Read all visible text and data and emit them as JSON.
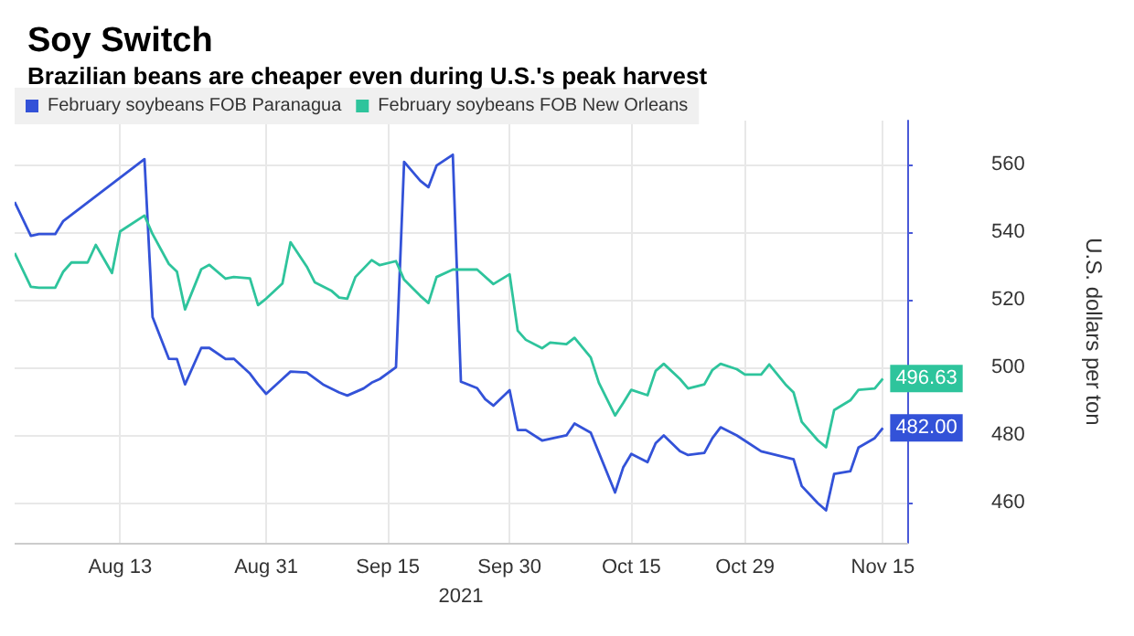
{
  "chart_data": {
    "type": "line",
    "title": "Soy Switch",
    "subtitle": "Brazilian beans are cheaper even during U.S.'s peak harvest",
    "xlabel": "2021",
    "ylabel": "U.S. dollars per ton",
    "xlim": [
      "2021-07-31",
      "2021-11-18"
    ],
    "xticks": [
      {
        "value": "2021-08-13",
        "label": "Aug 13"
      },
      {
        "value": "2021-08-31",
        "label": "Aug 31"
      },
      {
        "value": "2021-09-15",
        "label": "Sep 15"
      },
      {
        "value": "2021-09-30",
        "label": "Sep 30"
      },
      {
        "value": "2021-10-15",
        "label": "Oct 15"
      },
      {
        "value": "2021-10-29",
        "label": "Oct 29"
      },
      {
        "value": "2021-11-15",
        "label": "Nov 15"
      }
    ],
    "ylim": [
      448,
      573
    ],
    "yticks": [
      460,
      480,
      500,
      520,
      540,
      560
    ],
    "grid": true,
    "legend": "top left",
    "series": [
      {
        "name": "February soybeans FOB Paranagua",
        "color": "#3352d8",
        "x": [
          "2021-07-31",
          "2021-08-02",
          "2021-08-03",
          "2021-08-05",
          "2021-08-06",
          "2021-08-16",
          "2021-08-17",
          "2021-08-19",
          "2021-08-20",
          "2021-08-21",
          "2021-08-23",
          "2021-08-24",
          "2021-08-26",
          "2021-08-27",
          "2021-08-29",
          "2021-08-30",
          "2021-08-31",
          "2021-09-02",
          "2021-09-03",
          "2021-09-05",
          "2021-09-07",
          "2021-09-09",
          "2021-09-10",
          "2021-09-12",
          "2021-09-13",
          "2021-09-14",
          "2021-09-16",
          "2021-09-17",
          "2021-09-19",
          "2021-09-20",
          "2021-09-21",
          "2021-09-23",
          "2021-09-24",
          "2021-09-26",
          "2021-09-27",
          "2021-09-28",
          "2021-09-30",
          "2021-10-01",
          "2021-10-02",
          "2021-10-04",
          "2021-10-07",
          "2021-10-08",
          "2021-10-10",
          "2021-10-13",
          "2021-10-14",
          "2021-10-15",
          "2021-10-17",
          "2021-10-18",
          "2021-10-19",
          "2021-10-21",
          "2021-10-22",
          "2021-10-24",
          "2021-10-25",
          "2021-10-26",
          "2021-10-28",
          "2021-10-31",
          "2021-11-04",
          "2021-11-05",
          "2021-11-07",
          "2021-11-08",
          "2021-11-09",
          "2021-11-11",
          "2021-11-12",
          "2021-11-14",
          "2021-11-15"
        ],
        "values": [
          548.9,
          538.9,
          539.4,
          539.4,
          543.3,
          561.6,
          514.8,
          502.5,
          502.4,
          494.9,
          505.7,
          505.7,
          502.4,
          502.5,
          498.1,
          494.9,
          492.1,
          496.5,
          498.7,
          498.4,
          494.9,
          492.5,
          491.6,
          493.7,
          495.4,
          496.5,
          500,
          560.8,
          555.2,
          553.3,
          559.7,
          562.9,
          495.7,
          493.8,
          490.5,
          488.6,
          493.2,
          481.4,
          481.4,
          478.3,
          479.8,
          483.3,
          480.6,
          462.9,
          470.3,
          474.3,
          471.9,
          477.5,
          479.8,
          475.1,
          474,
          474.6,
          479,
          482.2,
          479.8,
          475.1,
          472.7,
          464.8,
          459.7,
          457.6,
          468.4,
          469.2,
          476.2,
          479,
          482
        ],
        "value_labels": [
          null,
          null,
          null,
          null,
          null,
          null,
          null,
          null,
          null,
          null,
          null,
          null,
          null,
          null,
          null,
          null,
          null,
          null,
          null,
          null,
          null,
          null,
          null,
          null,
          null,
          null,
          null,
          null,
          null,
          null,
          null,
          null,
          null,
          null,
          null,
          null,
          null,
          null,
          null,
          null,
          null,
          null,
          null,
          null,
          null,
          null,
          null,
          null,
          null,
          null,
          null,
          null,
          null,
          null,
          null,
          null,
          null,
          null,
          null,
          null,
          null,
          null,
          null,
          null,
          "482.00"
        ]
      },
      {
        "name": "February soybeans FOB New Orleans",
        "color": "#2ec49c",
        "x": [
          "2021-07-31",
          "2021-08-02",
          "2021-08-03",
          "2021-08-05",
          "2021-08-06",
          "2021-08-07",
          "2021-08-09",
          "2021-08-10",
          "2021-08-12",
          "2021-08-13",
          "2021-08-16",
          "2021-08-17",
          "2021-08-19",
          "2021-08-20",
          "2021-08-21",
          "2021-08-23",
          "2021-08-24",
          "2021-08-26",
          "2021-08-27",
          "2021-08-29",
          "2021-08-30",
          "2021-08-31",
          "2021-09-02",
          "2021-09-03",
          "2021-09-05",
          "2021-09-06",
          "2021-09-08",
          "2021-09-09",
          "2021-09-10",
          "2021-09-11",
          "2021-09-13",
          "2021-09-14",
          "2021-09-16",
          "2021-09-17",
          "2021-09-19",
          "2021-09-20",
          "2021-09-21",
          "2021-09-23",
          "2021-09-26",
          "2021-09-28",
          "2021-09-30",
          "2021-10-01",
          "2021-10-02",
          "2021-10-04",
          "2021-10-05",
          "2021-10-07",
          "2021-10-08",
          "2021-10-10",
          "2021-10-11",
          "2021-10-13",
          "2021-10-14",
          "2021-10-15",
          "2021-10-17",
          "2021-10-18",
          "2021-10-19",
          "2021-10-21",
          "2021-10-22",
          "2021-10-24",
          "2021-10-25",
          "2021-10-26",
          "2021-10-28",
          "2021-10-29",
          "2021-10-31",
          "2021-11-01",
          "2021-11-03",
          "2021-11-04",
          "2021-11-05",
          "2021-11-07",
          "2021-11-08",
          "2021-11-09",
          "2021-11-11",
          "2021-11-12",
          "2021-11-14",
          "2021-11-15"
        ],
        "values": [
          533.8,
          523.8,
          523.5,
          523.5,
          528.3,
          531,
          531,
          536.2,
          527.9,
          540.2,
          544.9,
          539.4,
          530.6,
          528.3,
          517.1,
          529,
          530.3,
          526.2,
          526.7,
          526.3,
          518.4,
          520.3,
          524.8,
          537,
          529.8,
          525.1,
          522.7,
          520.6,
          520.3,
          526.7,
          531.7,
          530.2,
          531.4,
          525.9,
          521.1,
          519,
          526.7,
          528.9,
          528.9,
          524.6,
          527.5,
          510.8,
          508.1,
          505.6,
          507.3,
          506.8,
          508.7,
          502.9,
          495.4,
          485.7,
          489.4,
          493.3,
          491.7,
          498.9,
          501,
          496.5,
          493.7,
          494.9,
          499.2,
          501,
          499.4,
          497.8,
          497.8,
          500.8,
          494.9,
          492.5,
          483.8,
          478.3,
          476.3,
          487.3,
          490.2,
          493.3,
          493.7,
          496.63
        ],
        "value_labels": [
          null,
          null,
          null,
          null,
          null,
          null,
          null,
          null,
          null,
          null,
          null,
          null,
          null,
          null,
          null,
          null,
          null,
          null,
          null,
          null,
          null,
          null,
          null,
          null,
          null,
          null,
          null,
          null,
          null,
          null,
          null,
          null,
          null,
          null,
          null,
          null,
          null,
          null,
          null,
          null,
          null,
          null,
          null,
          null,
          null,
          null,
          null,
          null,
          null,
          null,
          null,
          null,
          null,
          null,
          null,
          null,
          null,
          null,
          null,
          null,
          null,
          null,
          null,
          null,
          null,
          null,
          null,
          null,
          null,
          null,
          null,
          null,
          null,
          "496.63"
        ]
      }
    ]
  }
}
